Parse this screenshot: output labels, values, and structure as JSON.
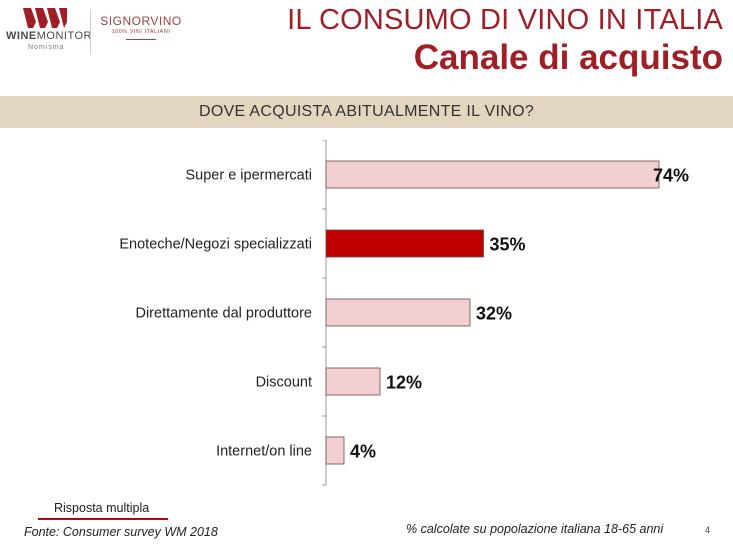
{
  "logos": {
    "winemonitor": {
      "name_bold": "WINE",
      "name_rest": "MONITOR",
      "sub": "Nomisma"
    },
    "signorvino": {
      "name": "SIGNORVINO",
      "tag": "100% VINI ITALIANI"
    }
  },
  "header": {
    "title": "IL CONSUMO DI VINO IN ITALIA",
    "subtitle": "Canale di acquisto",
    "question": "DOVE ACQUISTA ABITUALMENTE IL VINO?"
  },
  "chart_data": {
    "type": "bar",
    "orientation": "horizontal",
    "categories": [
      "Super e ipermercati",
      "Enoteche/Negozi specializzati",
      "Direttamente dal produttore",
      "Discount",
      "Internet/on line"
    ],
    "values": [
      74,
      35,
      32,
      12,
      4
    ],
    "labels": [
      "74%",
      "35%",
      "32%",
      "12%",
      "4%"
    ],
    "highlight_index": 1,
    "xlim": [
      0,
      100
    ],
    "colors": {
      "bar": "#f2cfd2",
      "highlight": "#c00000",
      "bar_stroke": "#6b4b4b",
      "axis": "#999999"
    }
  },
  "footer": {
    "note": "Risposta multipla",
    "source": "Fonte: Consumer survey WM 2018",
    "calc_note": "% calcolate su popolazione italiana 18-65 anni",
    "page_number": "4"
  }
}
